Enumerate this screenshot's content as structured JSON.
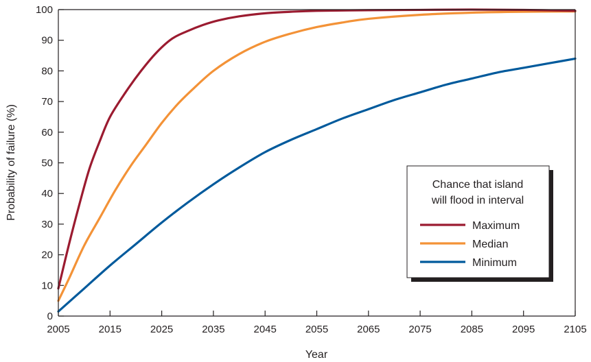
{
  "chart_data": {
    "type": "line",
    "title": "",
    "xlabel": "Year",
    "ylabel": "Probability of failure (%)",
    "xlim": [
      2005,
      2105
    ],
    "ylim": [
      0,
      100
    ],
    "x_ticks": [
      2005,
      2015,
      2025,
      2035,
      2045,
      2055,
      2065,
      2075,
      2085,
      2095,
      2105
    ],
    "y_ticks": [
      0,
      10,
      20,
      30,
      40,
      50,
      60,
      70,
      80,
      90,
      100
    ],
    "grid": false,
    "legend": {
      "title_lines": [
        "Chance that island",
        "will flood in interval"
      ],
      "placement": "lower-right"
    },
    "series": [
      {
        "name": "Maximum",
        "color": "#9b1b30",
        "x": [
          2005,
          2007,
          2009,
          2011,
          2013,
          2015,
          2018,
          2021,
          2024,
          2027,
          2030,
          2033,
          2036,
          2040,
          2045,
          2050,
          2055,
          2065,
          2075,
          2085,
          2095,
          2105
        ],
        "y": [
          9,
          23,
          36,
          48,
          57,
          65,
          73,
          80,
          86,
          90.5,
          93,
          95,
          96.5,
          97.8,
          98.8,
          99.3,
          99.6,
          99.8,
          99.9,
          100,
          99.9,
          99.6
        ]
      },
      {
        "name": "Median",
        "color": "#f39237",
        "x": [
          2005,
          2007,
          2010,
          2013,
          2016,
          2019,
          2022,
          2025,
          2028,
          2031,
          2035,
          2040,
          2045,
          2050,
          2055,
          2060,
          2065,
          2075,
          2085,
          2095,
          2105
        ],
        "y": [
          5,
          12,
          23,
          32,
          41,
          49,
          56,
          63,
          69,
          74,
          80,
          85.5,
          89.5,
          92.2,
          94.3,
          95.8,
          97,
          98.3,
          99,
          99.3,
          99.4
        ]
      },
      {
        "name": "Minimum",
        "color": "#005a9c",
        "x": [
          2005,
          2010,
          2015,
          2020,
          2025,
          2030,
          2035,
          2040,
          2045,
          2050,
          2055,
          2060,
          2065,
          2070,
          2075,
          2080,
          2085,
          2090,
          2095,
          2100,
          2105
        ],
        "y": [
          1.5,
          9,
          16.5,
          23.5,
          30.5,
          37,
          43,
          48.5,
          53.5,
          57.5,
          61,
          64.5,
          67.5,
          70.5,
          73,
          75.5,
          77.5,
          79.5,
          81,
          82.5,
          84
        ]
      }
    ]
  }
}
